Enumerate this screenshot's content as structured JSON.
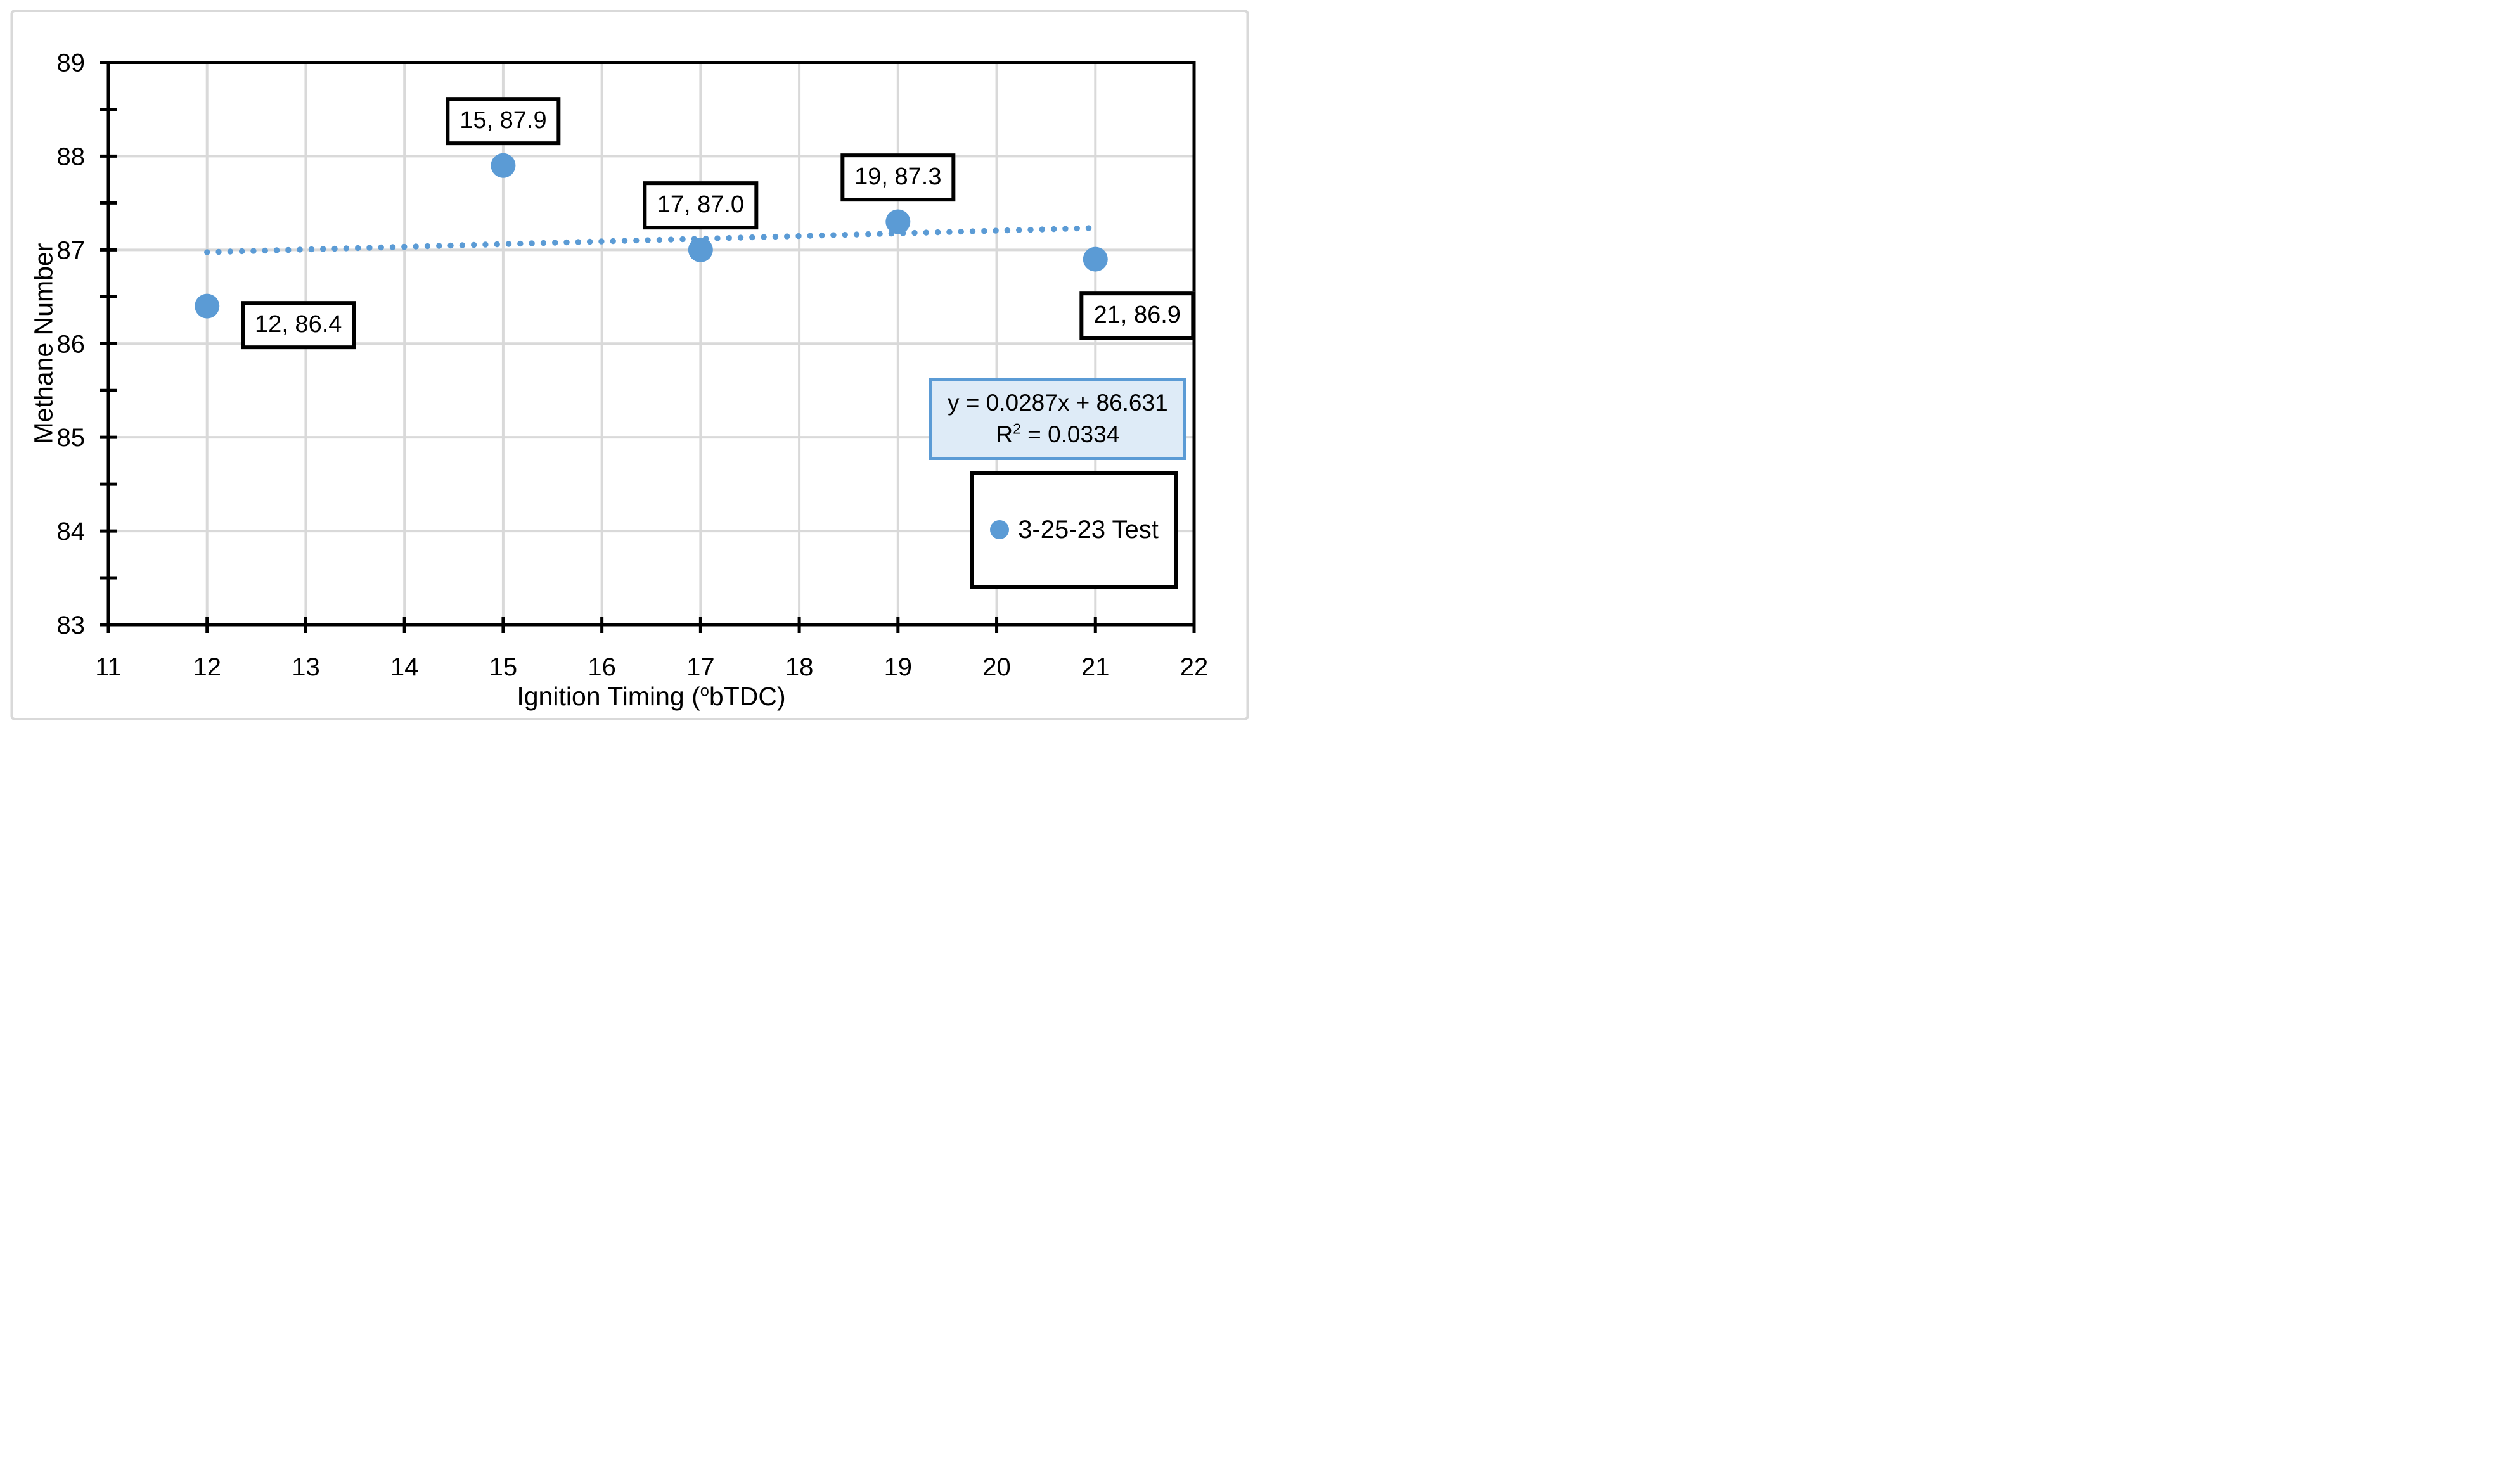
{
  "chart_data": {
    "type": "scatter",
    "title": "",
    "xlabel_parts": {
      "prefix": "Ignition Timing (",
      "sup": "o",
      "suffix": "bTDC)"
    },
    "ylabel": "Methane Number",
    "xlim": [
      11,
      22
    ],
    "ylim": [
      83,
      89
    ],
    "x_ticks": [
      11,
      12,
      13,
      14,
      15,
      16,
      17,
      18,
      19,
      20,
      21,
      22
    ],
    "y_ticks": [
      83,
      84,
      85,
      86,
      87,
      88,
      89
    ],
    "y_minor_tick_step": 0.5,
    "grid": true,
    "legend_position": "right-middle",
    "colors": {
      "series": "#5B9BD5",
      "gridline": "#D9D9D9",
      "axis": "#000000",
      "chart_border": "#D9D9D9",
      "equation_fill": "#DEEBF7",
      "equation_border": "#5B9BD5",
      "label_box_border": "#000000",
      "text": "#000000"
    },
    "series": [
      {
        "name": "3-25-23 Test",
        "marker": "circle",
        "points": [
          {
            "x": 12,
            "y": 86.4,
            "label": "12, 86.4",
            "label_offset": [
              144,
              30
            ]
          },
          {
            "x": 15,
            "y": 87.9,
            "label": "15, 87.9",
            "label_offset": [
              0,
              -70
            ]
          },
          {
            "x": 17,
            "y": 87.0,
            "label": "17, 87.0",
            "label_offset": [
              0,
              -70
            ]
          },
          {
            "x": 19,
            "y": 87.3,
            "label": "19, 87.3",
            "label_offset": [
              0,
              -70
            ]
          },
          {
            "x": 21,
            "y": 86.9,
            "label": "21, 86.9",
            "label_offset": [
              66,
              89
            ]
          }
        ]
      }
    ],
    "trendline": {
      "type": "linear",
      "slope": 0.0287,
      "intercept": 86.631,
      "x_start": 12,
      "x_end": 21.02,
      "style": "dotted"
    },
    "equation_box": {
      "line1": "y = 0.0287x + 86.631",
      "r2": {
        "base": "R",
        "sup": "2",
        "rest": " = 0.0334"
      }
    },
    "legend": {
      "label": "3-25-23 Test"
    }
  }
}
